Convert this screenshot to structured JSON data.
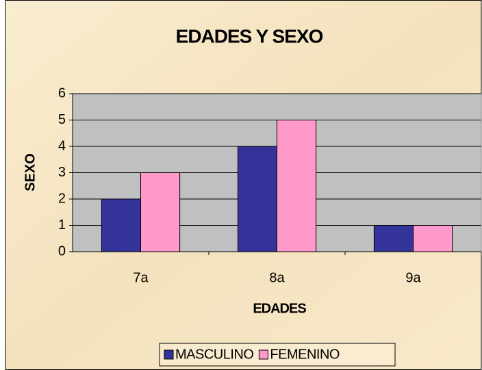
{
  "chart_data": {
    "type": "bar",
    "title": "EDADES Y SEXO",
    "x_label": "EDADES",
    "y_label": "SEXO",
    "categories": [
      "7a",
      "8a",
      "9a"
    ],
    "series": [
      {
        "name": "MASCULINO",
        "color": "#333399",
        "values": [
          2,
          4,
          1
        ]
      },
      {
        "name": "FEMENINO",
        "color": "#ff99cc",
        "values": [
          3,
          5,
          1
        ]
      }
    ],
    "ylim": [
      0,
      6
    ],
    "yticks": [
      0,
      1,
      2,
      3,
      4,
      5,
      6
    ],
    "grid": true,
    "legend": "bottom"
  }
}
